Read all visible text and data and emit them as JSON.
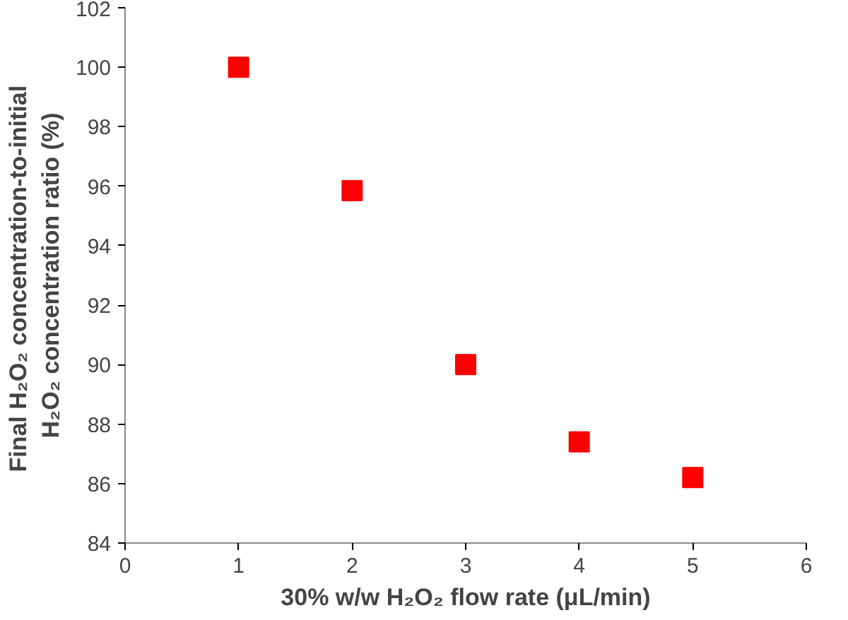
{
  "chart_data": {
    "type": "scatter",
    "xlabel": "30% w/w H₂O₂ flow rate (μL/min)",
    "ylabel": "Final H₂O₂  concentration-to-initial\nH₂O₂ concentration ratio (%)",
    "x": [
      1,
      2,
      3,
      4,
      5
    ],
    "series": [
      {
        "color": "#ff0000",
        "values": [
          100,
          95.85,
          90,
          87.4,
          86.2
        ]
      }
    ],
    "xlim": [
      0,
      6
    ],
    "xticks": [
      0,
      1,
      2,
      3,
      4,
      5,
      6
    ],
    "ylim": [
      84,
      102
    ],
    "yticks": [
      84,
      86,
      88,
      90,
      92,
      94,
      96,
      98,
      100,
      102
    ],
    "marker": "square"
  }
}
